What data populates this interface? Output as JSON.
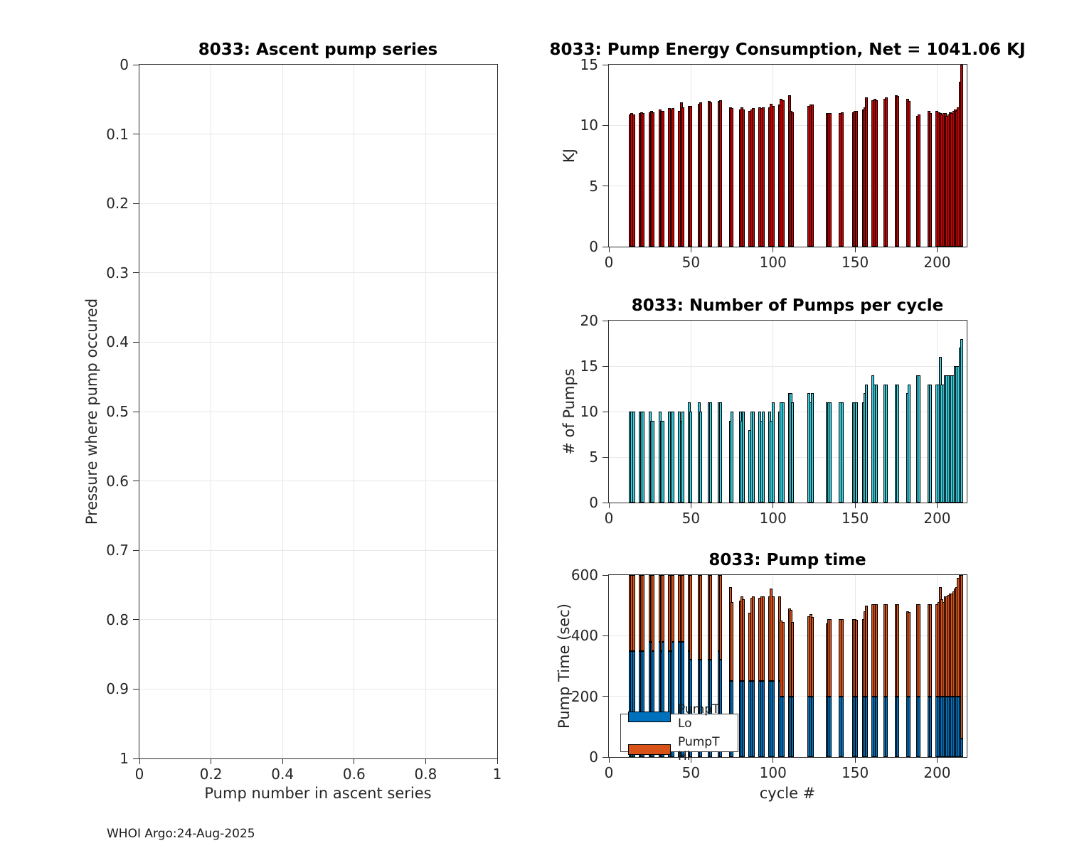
{
  "figure": {
    "footer": "WHOI Argo:24-Aug-2025"
  },
  "colors": {
    "energy_bar": "#cc0000",
    "pumps_bar": "#3ad0e0",
    "pump_lo": "#0072BD",
    "pump_hi": "#D95319",
    "bar_edge": "#000000",
    "grid": "#e8e8e8",
    "axis_box": "#2b2b2b"
  },
  "legend": {
    "items": [
      {
        "label": "PumpT Lo",
        "color": "#0072BD"
      },
      {
        "label": "PumpT Hi",
        "color": "#D95319"
      }
    ]
  },
  "chart_data": [
    {
      "type": "scatter",
      "title": "8033: Ascent pump series",
      "xlabel": "Pump number in ascent series",
      "ylabel": "Pressure where pump occured",
      "xlim": [
        0,
        1
      ],
      "ylim": [
        0,
        1
      ],
      "y_reversed": true,
      "grid": true,
      "xticks": [
        0,
        0.2,
        0.4,
        0.6,
        0.8,
        1
      ],
      "yticks": [
        0,
        0.1,
        0.2,
        0.3,
        0.4,
        0.5,
        0.6,
        0.7,
        0.8,
        0.9,
        1
      ],
      "points": []
    },
    {
      "type": "bar",
      "title": "8033: Pump Energy Consumption,  Net = 1041.06 KJ",
      "xlabel": "",
      "ylabel": "KJ",
      "net_kj": 1041.06,
      "xlim": [
        0,
        218
      ],
      "ylim": [
        0,
        15
      ],
      "grid": true,
      "xticks": [
        0,
        50,
        100,
        150,
        200
      ],
      "yticks": [
        0,
        5,
        10,
        15
      ],
      "x": [
        13,
        14,
        15,
        19,
        20,
        21,
        25,
        26,
        27,
        31,
        32,
        33,
        37,
        38,
        39,
        43,
        44,
        45,
        49,
        50,
        55,
        56,
        61,
        62,
        67,
        68,
        74,
        75,
        80,
        81,
        82,
        86,
        87,
        88,
        92,
        93,
        94,
        98,
        99,
        100,
        104,
        105,
        106,
        110,
        111,
        112,
        122,
        123,
        124,
        133,
        134,
        135,
        141,
        142,
        149,
        150,
        151,
        155,
        156,
        157,
        161,
        162,
        163,
        168,
        169,
        175,
        176,
        182,
        183,
        188,
        189,
        195,
        196,
        200,
        201,
        202,
        203,
        204,
        205,
        206,
        207,
        208,
        209,
        210,
        211,
        212,
        213,
        214,
        215
      ],
      "values": [
        10.9,
        11.0,
        10.9,
        11.0,
        11.1,
        11.0,
        11.1,
        11.2,
        11.1,
        11.3,
        11.2,
        11.2,
        11.4,
        11.3,
        11.4,
        11.2,
        11.9,
        11.5,
        11.6,
        11.6,
        11.8,
        11.9,
        12.0,
        11.9,
        12.0,
        12.1,
        11.5,
        11.4,
        11.3,
        11.5,
        11.3,
        11.2,
        11.3,
        11.4,
        11.5,
        11.4,
        11.5,
        11.5,
        11.8,
        11.6,
        11.7,
        12.2,
        12.1,
        12.5,
        11.2,
        11.1,
        11.6,
        11.7,
        11.7,
        11.0,
        11.0,
        11.0,
        11.0,
        11.1,
        11.1,
        11.2,
        11.2,
        11.3,
        11.5,
        12.3,
        12.1,
        12.2,
        12.1,
        12.2,
        12.3,
        12.5,
        12.4,
        12.2,
        12.0,
        10.8,
        10.9,
        11.2,
        11.0,
        11.2,
        11.1,
        11.0,
        10.9,
        11.0,
        11.0,
        10.8,
        10.9,
        11.1,
        11.0,
        11.2,
        11.3,
        11.2,
        11.5,
        13.6,
        15.0
      ]
    },
    {
      "type": "bar",
      "title": "8033: Number of Pumps per cycle",
      "xlabel": "",
      "ylabel": "# of Pumps",
      "xlim": [
        0,
        218
      ],
      "ylim": [
        0,
        20
      ],
      "grid": true,
      "xticks": [
        0,
        50,
        100,
        150,
        200
      ],
      "yticks": [
        0,
        5,
        10,
        15,
        20
      ],
      "x": [
        13,
        14,
        15,
        19,
        20,
        21,
        25,
        26,
        27,
        31,
        32,
        33,
        37,
        38,
        39,
        43,
        44,
        45,
        49,
        50,
        55,
        56,
        61,
        62,
        67,
        68,
        74,
        75,
        80,
        81,
        82,
        86,
        87,
        88,
        92,
        93,
        94,
        98,
        99,
        100,
        104,
        105,
        106,
        110,
        111,
        112,
        122,
        123,
        124,
        133,
        134,
        135,
        141,
        142,
        149,
        150,
        151,
        155,
        156,
        157,
        161,
        162,
        163,
        168,
        169,
        175,
        176,
        182,
        183,
        188,
        189,
        195,
        196,
        200,
        201,
        202,
        203,
        204,
        205,
        206,
        207,
        208,
        209,
        210,
        211,
        212,
        213,
        214,
        215
      ],
      "values": [
        10,
        10,
        10,
        10,
        10,
        10,
        10,
        9,
        9,
        10,
        9,
        9,
        10,
        10,
        10,
        10,
        9,
        10,
        11,
        10,
        11,
        10,
        11,
        11,
        11,
        11,
        9,
        10,
        10,
        9,
        10,
        8,
        10,
        10,
        10,
        9,
        10,
        10,
        9,
        11,
        10,
        11,
        11,
        12,
        12,
        11,
        12,
        11,
        12,
        11,
        11,
        11,
        11,
        11,
        11,
        11,
        11,
        11,
        12,
        13,
        14,
        13,
        13,
        13,
        13,
        13,
        13,
        12,
        13,
        14,
        14,
        13,
        13,
        13,
        13,
        16,
        13,
        13,
        14,
        14,
        14,
        14,
        14,
        14,
        15,
        15,
        15,
        17,
        18
      ]
    },
    {
      "type": "stacked-bar",
      "title": "8033: Pump time",
      "xlabel": "cycle #",
      "ylabel": "Pump Time (sec)",
      "xlim": [
        0,
        218
      ],
      "ylim": [
        0,
        600
      ],
      "grid": true,
      "legend_position": "southwest",
      "xticks": [
        0,
        50,
        100,
        150,
        200
      ],
      "yticks": [
        0,
        200,
        400,
        600
      ],
      "x": [
        13,
        14,
        15,
        19,
        20,
        21,
        25,
        26,
        27,
        31,
        32,
        33,
        37,
        38,
        39,
        43,
        44,
        45,
        49,
        50,
        55,
        56,
        61,
        62,
        67,
        68,
        74,
        75,
        80,
        81,
        82,
        86,
        87,
        88,
        92,
        93,
        94,
        98,
        99,
        100,
        104,
        105,
        106,
        110,
        111,
        112,
        122,
        123,
        124,
        133,
        134,
        135,
        141,
        142,
        149,
        150,
        151,
        155,
        156,
        157,
        161,
        162,
        163,
        168,
        169,
        175,
        176,
        182,
        183,
        188,
        189,
        195,
        196,
        200,
        201,
        202,
        203,
        204,
        205,
        206,
        207,
        208,
        209,
        210,
        211,
        212,
        213,
        214,
        215
      ],
      "series": [
        {
          "name": "PumpT Lo",
          "values": [
            350,
            350,
            350,
            350,
            350,
            350,
            380,
            380,
            350,
            380,
            350,
            380,
            350,
            350,
            380,
            380,
            380,
            380,
            350,
            320,
            320,
            320,
            320,
            320,
            350,
            320,
            250,
            250,
            250,
            250,
            250,
            250,
            250,
            250,
            250,
            250,
            250,
            250,
            250,
            250,
            250,
            200,
            200,
            200,
            200,
            200,
            200,
            200,
            200,
            200,
            200,
            200,
            200,
            200,
            200,
            200,
            200,
            200,
            200,
            200,
            200,
            200,
            200,
            200,
            200,
            200,
            200,
            200,
            200,
            200,
            200,
            200,
            200,
            200,
            200,
            200,
            200,
            200,
            200,
            200,
            200,
            200,
            200,
            200,
            200,
            200,
            200,
            200,
            60
          ]
        },
        {
          "name": "PumpT Hi",
          "values": [
            280,
            300,
            290,
            300,
            300,
            290,
            270,
            260,
            290,
            270,
            300,
            260,
            300,
            290,
            270,
            260,
            270,
            260,
            280,
            310,
            300,
            310,
            300,
            310,
            280,
            310,
            310,
            260,
            265,
            280,
            270,
            225,
            275,
            280,
            275,
            280,
            280,
            280,
            305,
            280,
            280,
            250,
            245,
            290,
            285,
            245,
            265,
            270,
            262,
            240,
            255,
            255,
            255,
            255,
            255,
            255,
            253,
            255,
            280,
            300,
            305,
            305,
            303,
            305,
            305,
            305,
            303,
            280,
            278,
            305,
            303,
            305,
            303,
            305,
            310,
            360,
            320,
            310,
            330,
            330,
            335,
            340,
            340,
            345,
            355,
            360,
            390,
            420,
            545
          ]
        }
      ]
    }
  ]
}
